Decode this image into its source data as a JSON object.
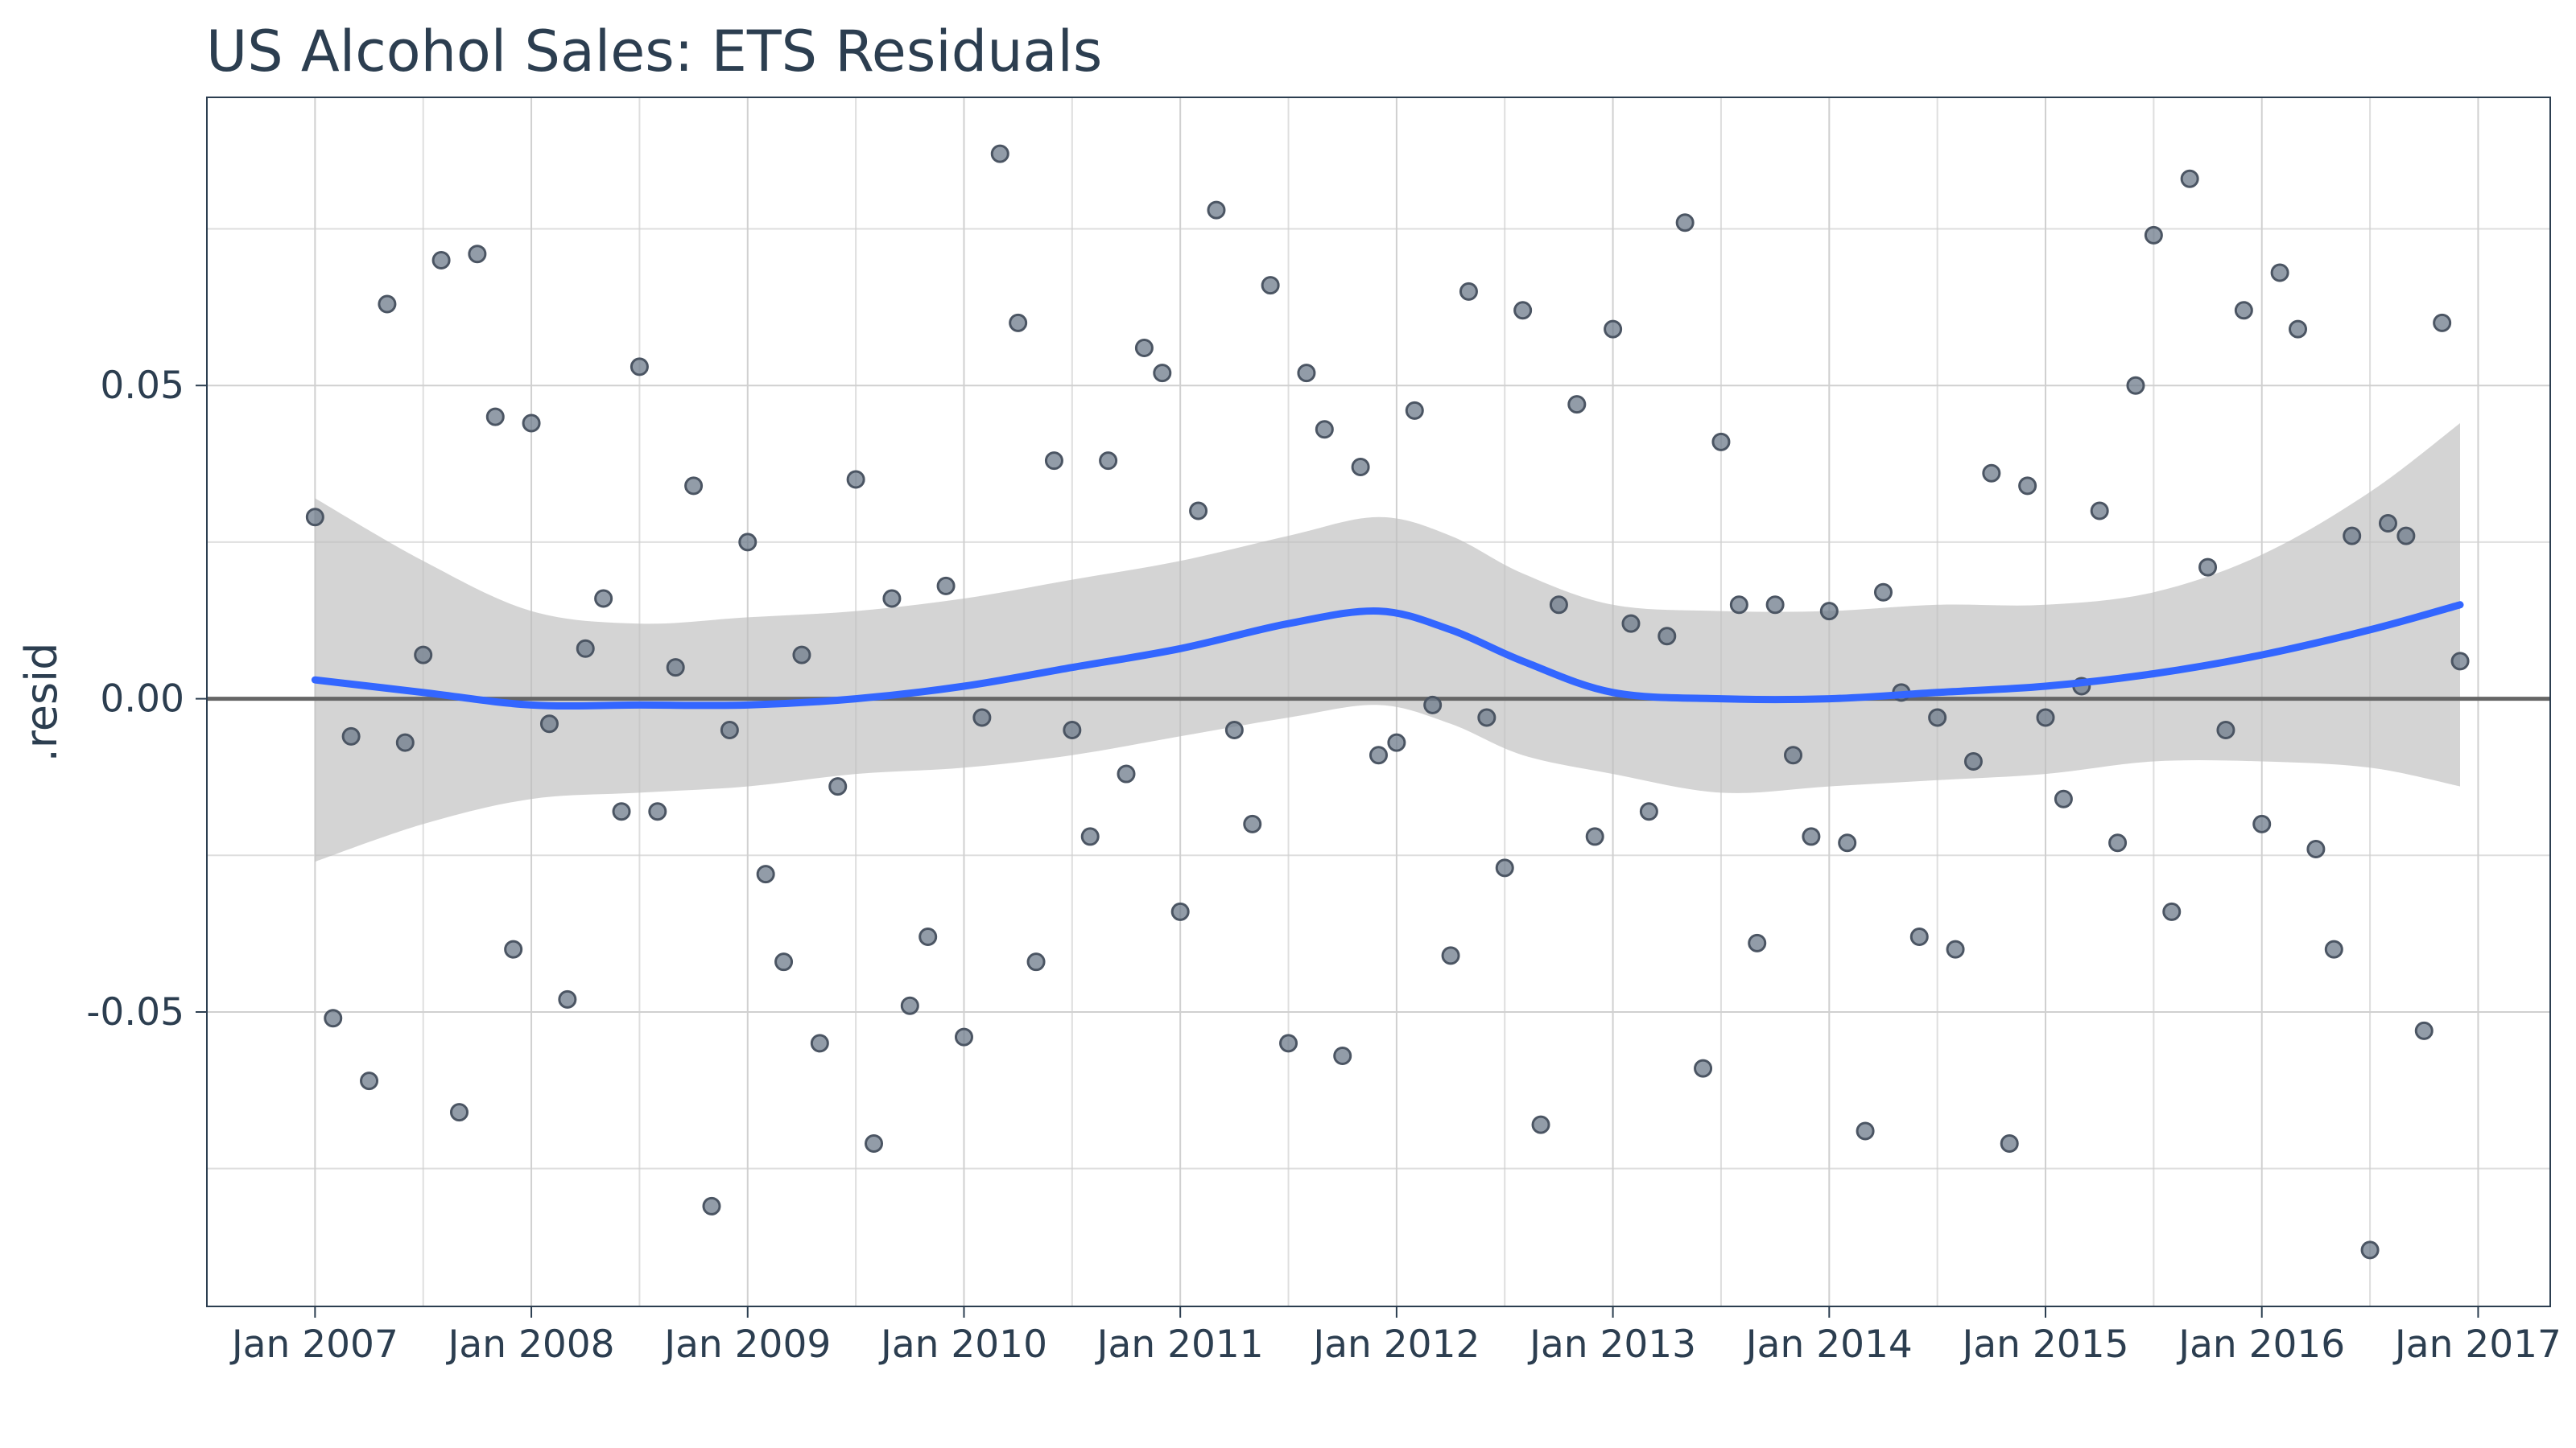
{
  "chart_data": {
    "type": "scatter",
    "title": "US Alcohol Sales: ETS Residuals",
    "xlabel": "",
    "ylabel": ".resid",
    "x_tick_labels": [
      "Jan 2007",
      "Jan 2008",
      "Jan 2009",
      "Jan 2010",
      "Jan 2011",
      "Jan 2012",
      "Jan 2013",
      "Jan 2014",
      "Jan 2015",
      "Jan 2016",
      "Jan 2017"
    ],
    "y_tick_labels": [
      "-0.05",
      "0.00",
      "0.05"
    ],
    "y_ticks": [
      -0.05,
      0.0,
      0.05
    ],
    "ylim": [
      -0.097,
      0.096
    ],
    "xlim": [
      "2006-07",
      "2017-05"
    ],
    "grid": true,
    "reference_line": 0.0,
    "colors": {
      "points": "#6e7b8b",
      "points_outline": "#4b5563",
      "smooth_line": "#3366ff",
      "ribbon": "#bdbdbd",
      "zero_line": "#666666",
      "text": "#2c3e50"
    },
    "residuals": {
      "start": "2007-01",
      "values": [
        0.029,
        -0.051,
        -0.006,
        -0.061,
        0.063,
        -0.007,
        0.007,
        0.07,
        -0.066,
        0.071,
        0.045,
        -0.04,
        0.044,
        -0.004,
        -0.048,
        0.008,
        0.016,
        -0.018,
        0.053,
        -0.018,
        0.005,
        0.034,
        -0.081,
        -0.005,
        0.025,
        -0.028,
        -0.042,
        0.007,
        -0.055,
        -0.014,
        0.035,
        -0.071,
        0.016,
        -0.049,
        -0.038,
        0.018,
        -0.054,
        -0.003,
        0.087,
        0.06,
        -0.042,
        0.038,
        -0.005,
        -0.022,
        0.038,
        -0.012,
        0.056,
        0.052,
        -0.034,
        0.03,
        0.078,
        -0.005,
        -0.02,
        0.066,
        -0.055,
        0.052,
        0.043,
        -0.057,
        0.037,
        -0.009,
        -0.007,
        0.046,
        -0.001,
        -0.041,
        0.065,
        -0.003,
        -0.027,
        0.062,
        -0.068,
        0.015,
        0.047,
        -0.022,
        0.059,
        0.012,
        -0.018,
        0.01,
        0.076,
        -0.059,
        0.041,
        0.015,
        -0.039,
        0.015,
        -0.009,
        -0.022,
        0.014,
        -0.023,
        -0.069,
        0.017,
        0.001,
        -0.038,
        -0.003,
        -0.04,
        -0.01,
        0.036,
        -0.071,
        0.034,
        -0.003,
        -0.016,
        0.002,
        0.03,
        -0.023,
        0.05,
        0.074,
        -0.034,
        0.083,
        0.021,
        -0.005,
        0.062,
        -0.02,
        0.068,
        0.059,
        -0.024,
        -0.04,
        0.026,
        -0.088,
        0.028,
        0.026,
        -0.053,
        0.06,
        0.006
      ]
    },
    "smooth": [
      {
        "x": "2007-01",
        "y": 0.003,
        "lo": -0.026,
        "hi": 0.032
      },
      {
        "x": "2007-07",
        "y": 0.001,
        "lo": -0.02,
        "hi": 0.022
      },
      {
        "x": "2008-01",
        "y": -0.001,
        "lo": -0.016,
        "hi": 0.014
      },
      {
        "x": "2008-07",
        "y": -0.001,
        "lo": -0.015,
        "hi": 0.012
      },
      {
        "x": "2009-01",
        "y": -0.001,
        "lo": -0.014,
        "hi": 0.013
      },
      {
        "x": "2009-07",
        "y": 0.0,
        "lo": -0.012,
        "hi": 0.014
      },
      {
        "x": "2010-01",
        "y": 0.002,
        "lo": -0.011,
        "hi": 0.016
      },
      {
        "x": "2010-07",
        "y": 0.005,
        "lo": -0.009,
        "hi": 0.019
      },
      {
        "x": "2011-01",
        "y": 0.008,
        "lo": -0.006,
        "hi": 0.022
      },
      {
        "x": "2011-07",
        "y": 0.012,
        "lo": -0.003,
        "hi": 0.026
      },
      {
        "x": "2011-12",
        "y": 0.014,
        "lo": -0.001,
        "hi": 0.029
      },
      {
        "x": "2012-04",
        "y": 0.011,
        "lo": -0.004,
        "hi": 0.026
      },
      {
        "x": "2012-08",
        "y": 0.006,
        "lo": -0.009,
        "hi": 0.02
      },
      {
        "x": "2013-01",
        "y": 0.001,
        "lo": -0.012,
        "hi": 0.015
      },
      {
        "x": "2013-07",
        "y": 0.0,
        "lo": -0.015,
        "hi": 0.014
      },
      {
        "x": "2014-01",
        "y": 0.0,
        "lo": -0.014,
        "hi": 0.014
      },
      {
        "x": "2014-07",
        "y": 0.001,
        "lo": -0.013,
        "hi": 0.015
      },
      {
        "x": "2015-01",
        "y": 0.002,
        "lo": -0.012,
        "hi": 0.015
      },
      {
        "x": "2015-07",
        "y": 0.004,
        "lo": -0.01,
        "hi": 0.017
      },
      {
        "x": "2016-01",
        "y": 0.007,
        "lo": -0.01,
        "hi": 0.023
      },
      {
        "x": "2016-07",
        "y": 0.011,
        "lo": -0.011,
        "hi": 0.033
      },
      {
        "x": "2016-12",
        "y": 0.015,
        "lo": -0.014,
        "hi": 0.044
      }
    ]
  }
}
